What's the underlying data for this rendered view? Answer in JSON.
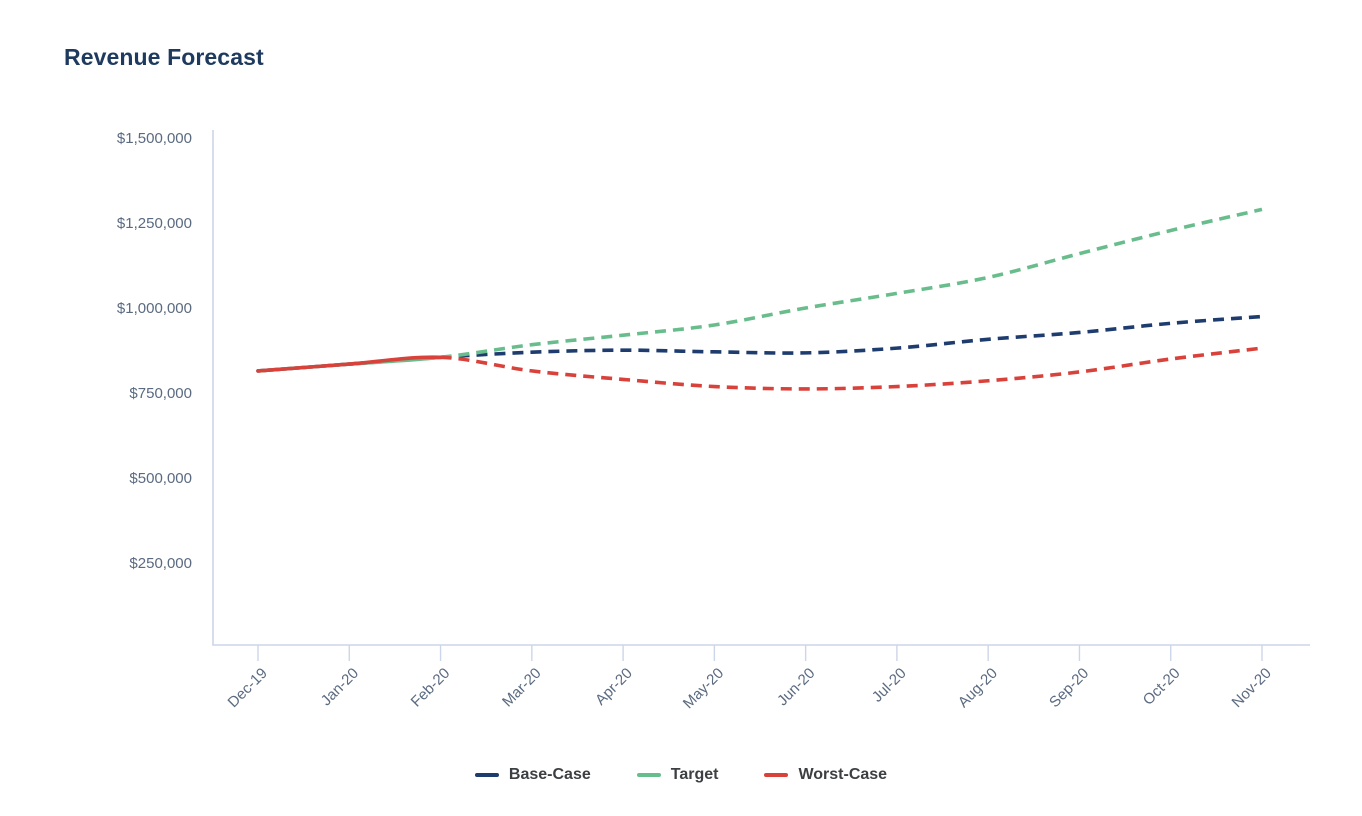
{
  "chart_data": {
    "type": "line",
    "title": "Revenue Forecast",
    "x": [
      "Dec-19",
      "Jan-20",
      "Feb-20",
      "Mar-20",
      "Apr-20",
      "May-20",
      "Jun-20",
      "Jul-20",
      "Aug-20",
      "Sep-20",
      "Oct-20",
      "Nov-20"
    ],
    "series": [
      {
        "name": "Base-Case",
        "color": "#1e3c6e",
        "values": [
          815000,
          835000,
          855000,
          870000,
          876000,
          871000,
          868000,
          882000,
          908000,
          928000,
          955000,
          975000
        ]
      },
      {
        "name": "Target",
        "color": "#69bd8c",
        "values": [
          815000,
          835000,
          855000,
          892000,
          920000,
          950000,
          1000000,
          1043000,
          1090000,
          1160000,
          1228000,
          1290000
        ]
      },
      {
        "name": "Worst-Case",
        "color": "#d8423b",
        "values": [
          815000,
          835000,
          855000,
          815000,
          790000,
          769000,
          762000,
          769000,
          786000,
          812000,
          850000,
          882000
        ]
      }
    ],
    "solid_until_index": 2,
    "y_ticks": [
      {
        "value": 1500000,
        "label": "$1,500,000"
      },
      {
        "value": 1250000,
        "label": "$1,250,000"
      },
      {
        "value": 1000000,
        "label": "$1,000,000"
      },
      {
        "value": 750000,
        "label": "$750,000"
      },
      {
        "value": 500000,
        "label": "$500,000"
      },
      {
        "value": 250000,
        "label": "$250,000"
      }
    ],
    "ylim": [
      0,
      1500000
    ],
    "xlabel": "",
    "ylabel": "",
    "grid": false,
    "legend_position": "bottom",
    "x_label_rotation": -45,
    "axis_color": "#ccd6ea",
    "tick_label_color": "#5a6a80",
    "title_color": "#1e3a5f",
    "legend_text_color": "#3d4043"
  }
}
